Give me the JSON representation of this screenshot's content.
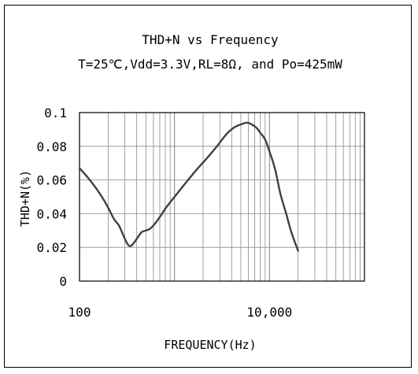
{
  "chart_data": {
    "type": "line",
    "title": "THD+N vs Frequency",
    "subtitle": "T=25℃,Vdd=3.3V,RL=8Ω, and Po=425mW",
    "xlabel": "FREQUENCY(Hz)",
    "ylabel": "THD+N(%)",
    "x_scale": "log",
    "xlim": [
      100,
      100000
    ],
    "ylim": [
      0,
      0.1
    ],
    "grid": true,
    "x_tick_labels": [
      {
        "value": 100,
        "label": "100"
      },
      {
        "value": 10000,
        "label": "10,000"
      }
    ],
    "y_tick_labels": [
      {
        "value": 0,
        "label": "0"
      },
      {
        "value": 0.02,
        "label": "0.02"
      },
      {
        "value": 0.04,
        "label": "0.04"
      },
      {
        "value": 0.06,
        "label": "0.06"
      },
      {
        "value": 0.08,
        "label": "0.08"
      },
      {
        "value": 0.1,
        "label": "0.1"
      }
    ],
    "series": [
      {
        "color": "#404040",
        "x": [
          100,
          120,
          150,
          190,
          230,
          260,
          290,
          320,
          350,
          400,
          450,
          500,
          550,
          600,
          700,
          800,
          1000,
          1300,
          1700,
          2200,
          2800,
          3500,
          4200,
          5000,
          5800,
          6500,
          7300,
          8000,
          9000,
          10000,
          11500,
          13000,
          15000,
          17000,
          20000
        ],
        "y": [
          0.067,
          0.062,
          0.055,
          0.046,
          0.037,
          0.033,
          0.027,
          0.022,
          0.021,
          0.025,
          0.029,
          0.03,
          0.031,
          0.033,
          0.038,
          0.043,
          0.05,
          0.058,
          0.066,
          0.073,
          0.08,
          0.087,
          0.091,
          0.093,
          0.094,
          0.093,
          0.091,
          0.088,
          0.084,
          0.077,
          0.066,
          0.052,
          0.04,
          0.029,
          0.018
        ]
      }
    ]
  }
}
